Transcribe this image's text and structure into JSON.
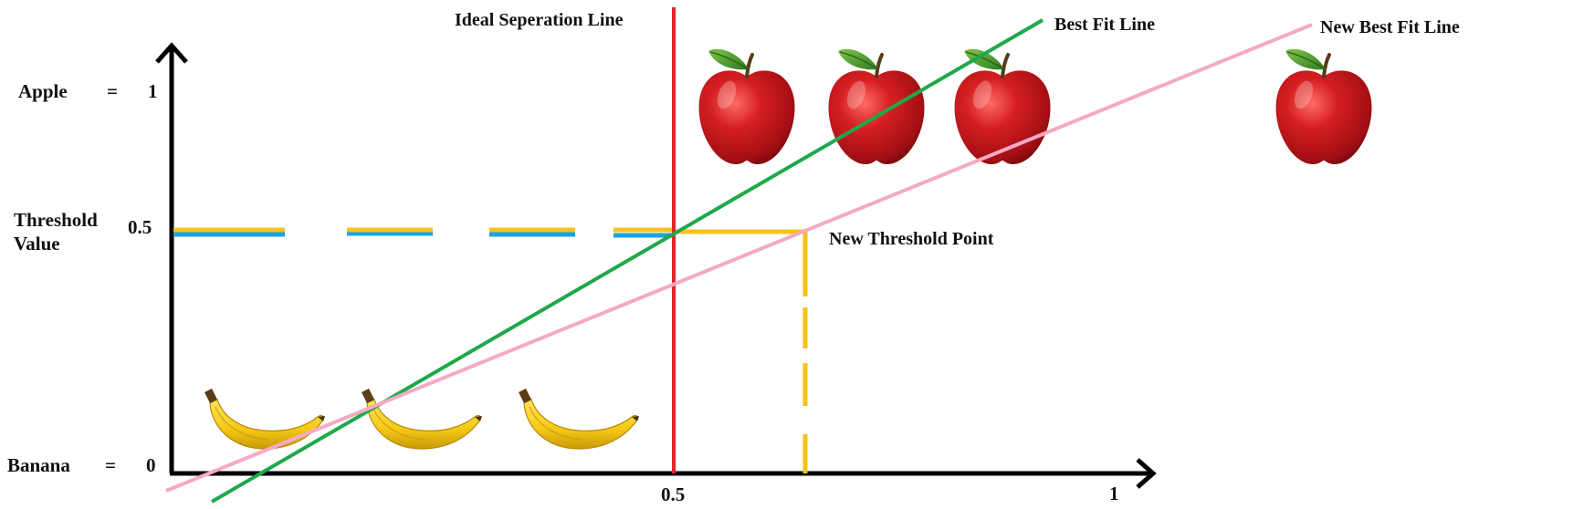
{
  "colors": {
    "axis": "#000000",
    "ideal_separation_line": "#e8232a",
    "best_fit_line": "#1fa84a",
    "new_best_fit_line": "#f4a9c4",
    "threshold_yellow": "#f7c21b",
    "threshold_blue": "#1aa3df",
    "apple": "#c4141c",
    "banana": "#f5c916"
  },
  "labels": {
    "ideal_separation_line": "Ideal Seperation Line",
    "best_fit_line": "Best Fit Line",
    "new_best_fit_line": "New Best Fit Line",
    "new_threshold_point": "New Threshold Point",
    "apple": "Apple",
    "apple_equals": "=",
    "apple_value": "1",
    "threshold_line1": "Threshold",
    "threshold_line2": "Value",
    "threshold_value": "0.5",
    "banana": "Banana",
    "banana_equals": "=",
    "banana_value": "0",
    "x_tick_mid": "0.5",
    "x_tick_end": "1"
  },
  "images": {
    "apples": 4,
    "bananas": 3
  }
}
